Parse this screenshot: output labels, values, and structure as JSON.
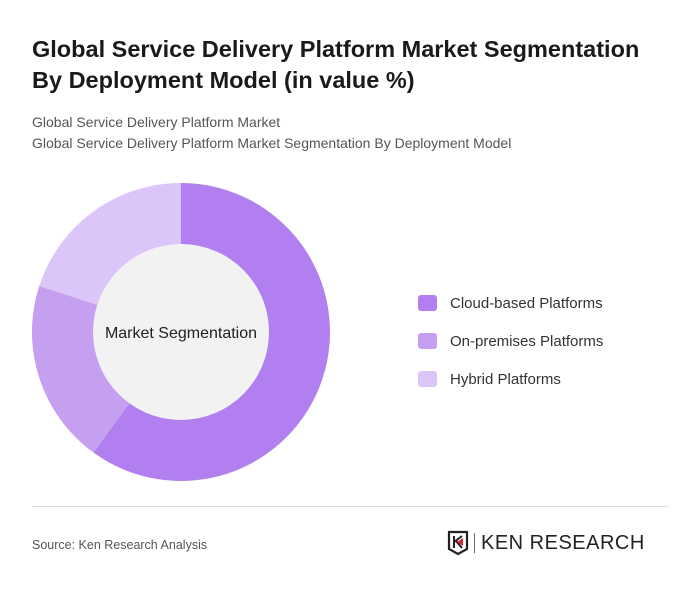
{
  "title": "Global Service Delivery Platform Market Segmentation By Deployment Model (in value %)",
  "subtitle_1": "Global Service Delivery Platform Market",
  "subtitle_2": "Global Service Delivery Platform Market Segmentation By Deployment Model",
  "source": "Source: Ken Research Analysis",
  "logo_text": "KEN RESEARCH",
  "chart_data": {
    "type": "pie",
    "variant": "donut",
    "center_label": "Market Segmentation",
    "categories": [
      "Cloud-based Platforms",
      "On-premises Platforms",
      "Hybrid Platforms"
    ],
    "values": [
      60,
      20,
      20
    ],
    "colors": [
      "#b17ff0",
      "#c6a0f0",
      "#dcc5f8"
    ],
    "center_fill": "#f2f2f2",
    "legend_placement": "right"
  }
}
